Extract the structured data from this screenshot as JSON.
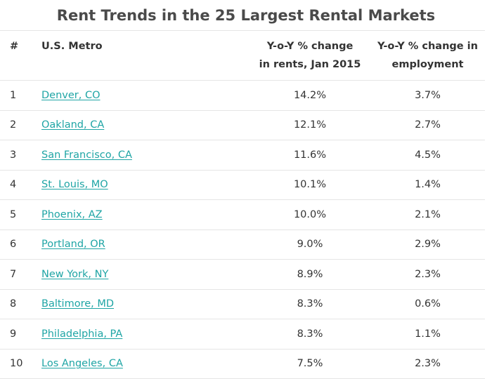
{
  "chart_data": {
    "type": "table",
    "title": "Rent Trends in the 25 Largest Rental Markets",
    "columns": {
      "rank": "#",
      "metro": "U.S. Metro",
      "rent_change": [
        "Y-o-Y % change",
        "in rents, Jan 2015"
      ],
      "employment_change": [
        "Y-o-Y % change in",
        "employment"
      ]
    },
    "rows": [
      {
        "rank": "1",
        "metro": "Denver, CO",
        "rent_change": "14.2%",
        "employment_change": "3.7%"
      },
      {
        "rank": "2",
        "metro": "Oakland, CA",
        "rent_change": "12.1%",
        "employment_change": "2.7%"
      },
      {
        "rank": "3",
        "metro": "San Francisco, CA",
        "rent_change": "11.6%",
        "employment_change": "4.5%"
      },
      {
        "rank": "4",
        "metro": "St. Louis, MO",
        "rent_change": "10.1%",
        "employment_change": "1.4%"
      },
      {
        "rank": "5",
        "metro": "Phoenix, AZ",
        "rent_change": "10.0%",
        "employment_change": "2.1%"
      },
      {
        "rank": "6",
        "metro": "Portland, OR",
        "rent_change": "9.0%",
        "employment_change": "2.9%"
      },
      {
        "rank": "7",
        "metro": "New York, NY",
        "rent_change": "8.9%",
        "employment_change": "2.3%"
      },
      {
        "rank": "8",
        "metro": "Baltimore, MD",
        "rent_change": "8.3%",
        "employment_change": "0.6%"
      },
      {
        "rank": "9",
        "metro": "Philadelphia, PA",
        "rent_change": "8.3%",
        "employment_change": "1.1%"
      },
      {
        "rank": "10",
        "metro": "Los Angeles, CA",
        "rent_change": "7.5%",
        "employment_change": "2.3%"
      }
    ]
  },
  "colors": {
    "link": "#1fa5a5",
    "text": "#333333",
    "title": "#4a4a4a",
    "row_divider": "#e5e5e5"
  }
}
